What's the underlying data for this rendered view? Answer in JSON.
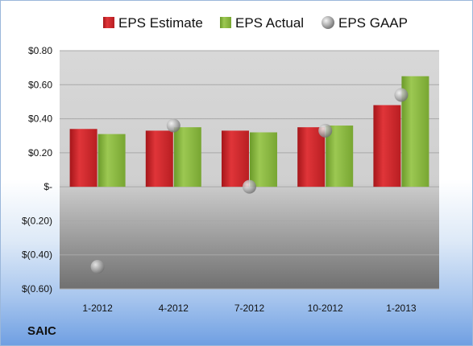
{
  "chart_data": {
    "type": "bar",
    "categories": [
      "1-2012",
      "4-2012",
      "7-2012",
      "10-2012",
      "1-2013"
    ],
    "series": [
      {
        "name": "EPS Estimate",
        "kind": "bar",
        "color": "#d42a2e",
        "values": [
          0.34,
          0.33,
          0.33,
          0.35,
          0.48
        ]
      },
      {
        "name": "EPS Actual",
        "kind": "bar",
        "color": "#8fbc3f",
        "values": [
          0.31,
          0.35,
          0.32,
          0.36,
          0.65
        ]
      },
      {
        "name": "EPS GAAP",
        "kind": "marker",
        "color": "#9aa0a6",
        "values": [
          -0.47,
          0.36,
          0.0,
          0.33,
          0.54
        ]
      }
    ],
    "ylim": [
      -0.6,
      0.8
    ],
    "yticks": [
      0.8,
      0.6,
      0.4,
      0.2,
      0,
      -0.2,
      -0.4,
      -0.6
    ],
    "ytick_labels": [
      "$0.80",
      "$0.60",
      "$0.40",
      "$0.20",
      "$-",
      "$(0.20)",
      "$(0.40)",
      "$(0.60)"
    ],
    "grid": true,
    "legend_position": "top"
  },
  "company_label": "SAIC"
}
